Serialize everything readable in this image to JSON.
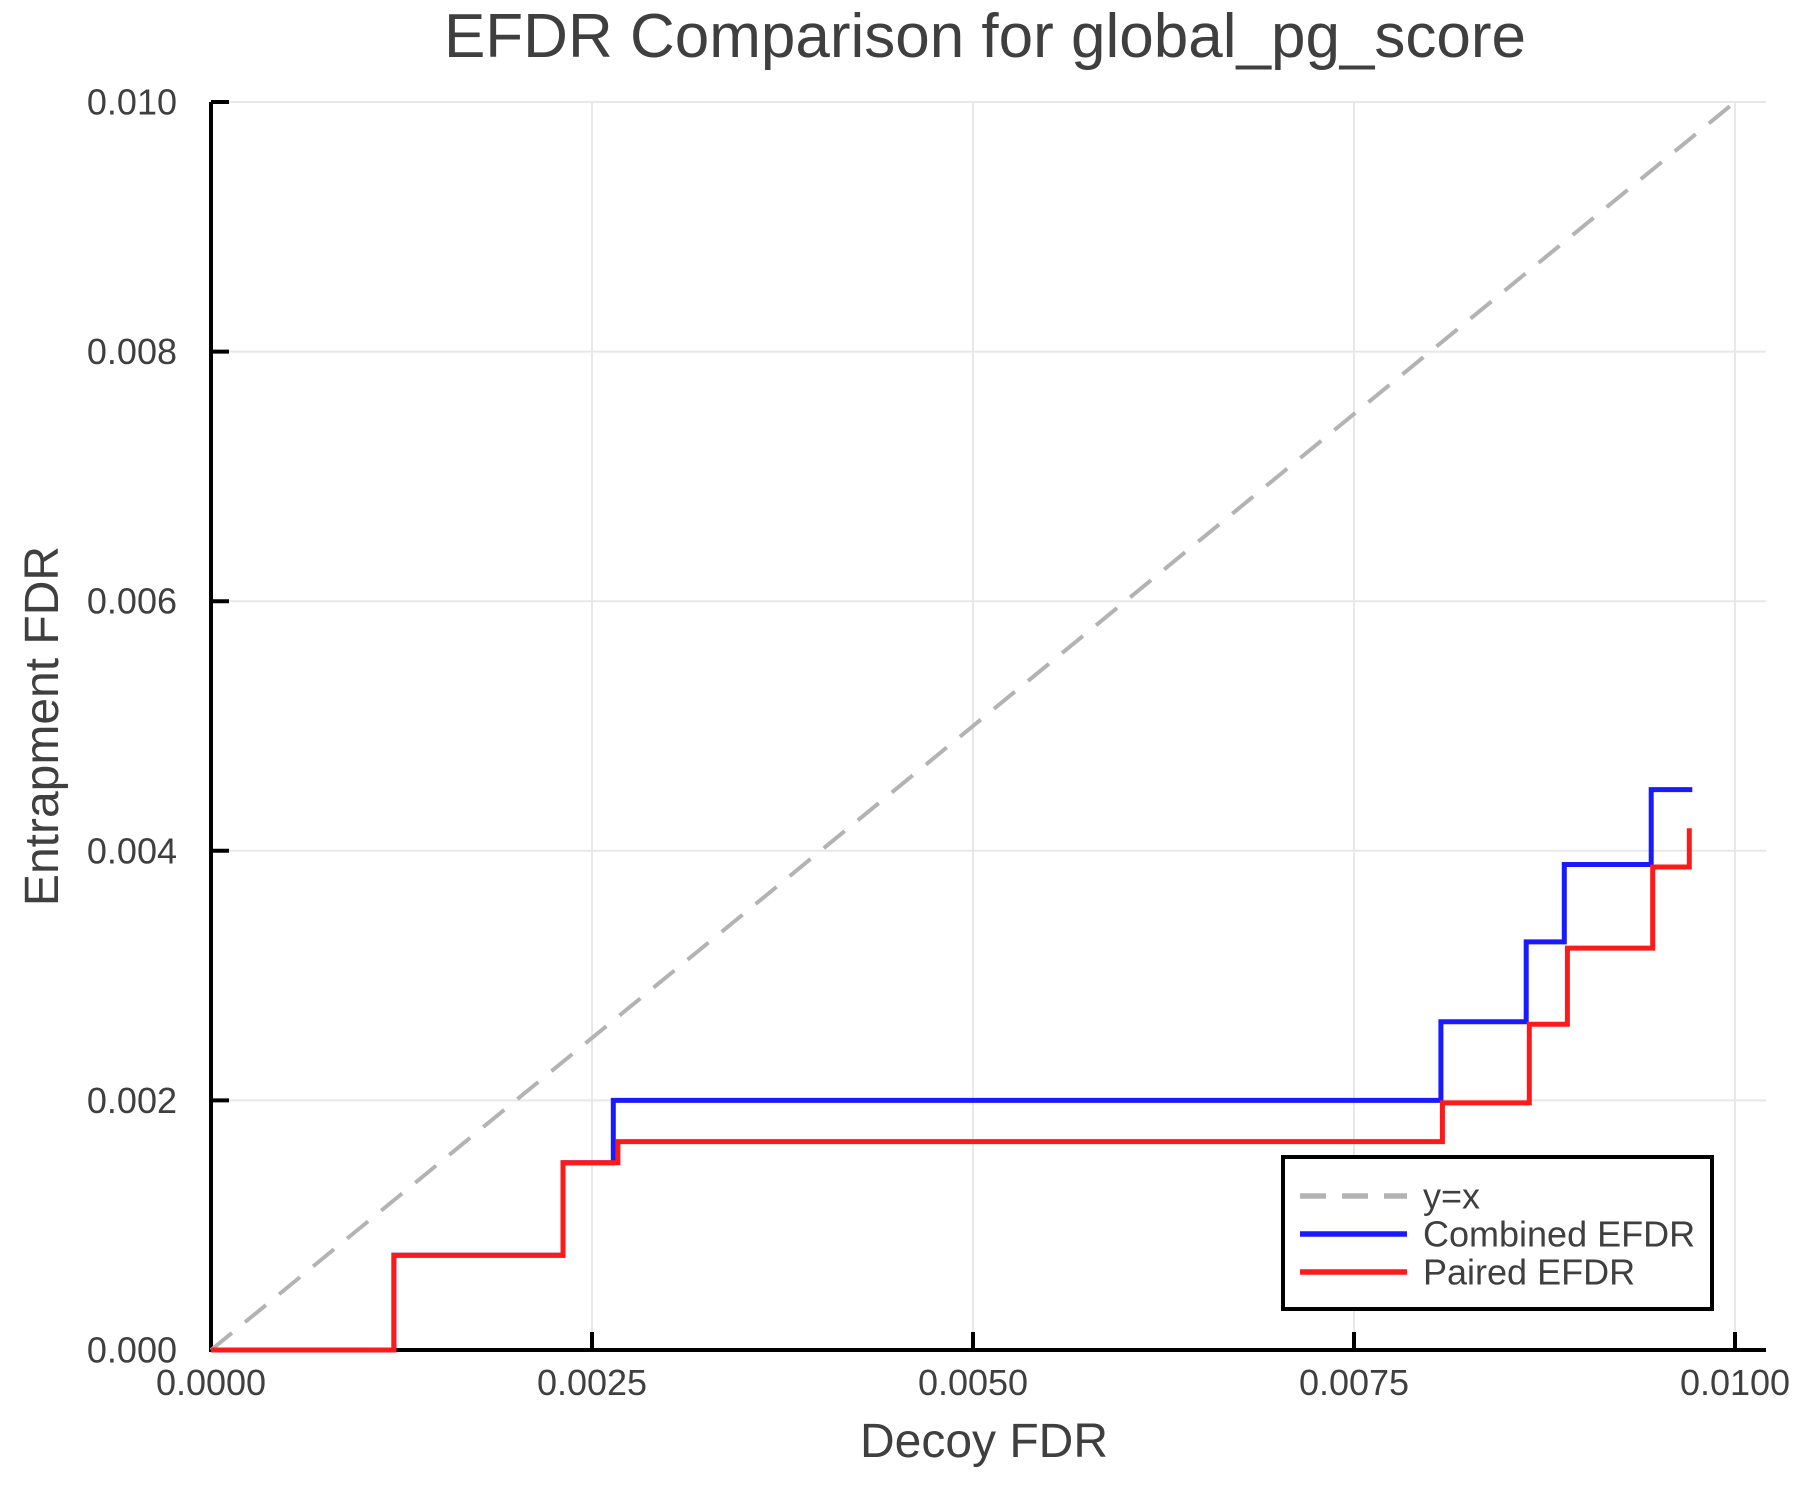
{
  "title": "EFDR Comparison for global_pg_score",
  "axes": {
    "x_label": "Decoy FDR",
    "y_label": "Entrapment FDR",
    "x_tick_values": [
      0,
      0.0025,
      0.005,
      0.0075,
      0.01
    ],
    "x_tick_labels": [
      "0.0000",
      "0.0025",
      "0.0050",
      "0.0075",
      "0.0100"
    ],
    "y_tick_values": [
      0,
      0.002,
      0.004,
      0.006,
      0.008,
      0.01
    ],
    "y_tick_labels": [
      "0.000",
      "0.002",
      "0.004",
      "0.006",
      "0.008",
      "0.010"
    ]
  },
  "colors": {
    "combined": "#1a1aff",
    "paired": "#ff1a1a",
    "reference": "#b3b3b3",
    "grid": "#e8e8e8",
    "spine": "#000000",
    "text": "#3f3f3f"
  },
  "legend": {
    "items": [
      {
        "label": "y=x",
        "color": "#b3b3b3",
        "dashed": true
      },
      {
        "label": "Combined EFDR",
        "color": "#1a1aff",
        "dashed": false
      },
      {
        "label": "Paired EFDR",
        "color": "#ff1a1a",
        "dashed": false
      }
    ]
  },
  "chart_data": {
    "type": "line",
    "title": "EFDR Comparison for global_pg_score",
    "xlabel": "Decoy FDR",
    "ylabel": "Entrapment FDR",
    "xlim": [
      0,
      0.0102
    ],
    "ylim": [
      0,
      0.01
    ],
    "grid": true,
    "legend_position": "lower right",
    "reference_line": {
      "name": "y=x",
      "style": "dashed",
      "color": "#b3b3b3",
      "from": [
        0,
        0
      ],
      "to": [
        0.01,
        0.01
      ]
    },
    "series": [
      {
        "name": "Combined EFDR",
        "color": "#1a1aff",
        "step_mode": "vh",
        "x": [
          0,
          0.0012,
          0.00231,
          0.00264,
          0.00807,
          0.00863,
          0.00888,
          0.00945,
          0.00972
        ],
        "y": [
          0,
          0.00076,
          0.0015,
          0.002,
          0.00263,
          0.00327,
          0.00389,
          0.00449,
          0.00449
        ]
      },
      {
        "name": "Paired EFDR",
        "color": "#ff1a1a",
        "step_mode": "vh",
        "x": [
          0,
          0.0012,
          0.00231,
          0.00267,
          0.00808,
          0.00865,
          0.0089,
          0.00946,
          0.0097
        ],
        "y": [
          0,
          0.00076,
          0.0015,
          0.00167,
          0.00198,
          0.00261,
          0.00322,
          0.00387,
          0.00418
        ]
      }
    ]
  }
}
